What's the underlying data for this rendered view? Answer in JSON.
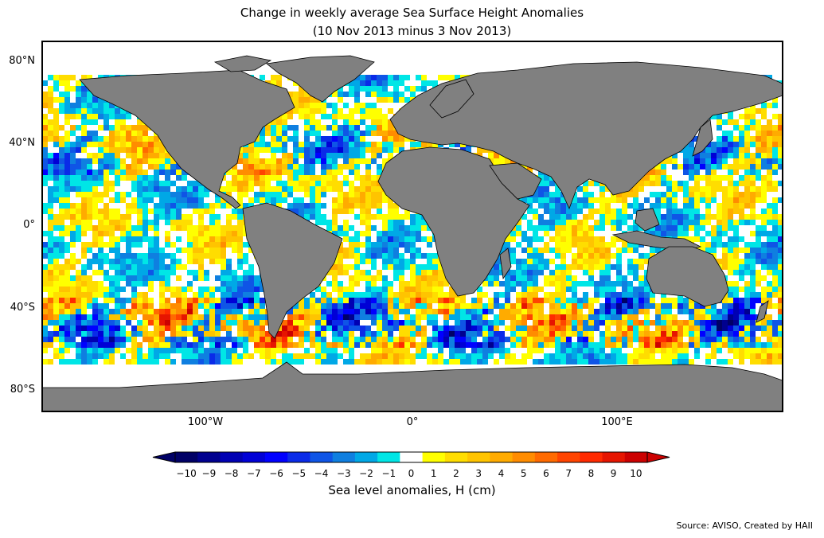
{
  "title_line1": "Change in weekly average Sea Surface Height Anomalies",
  "title_line2": "(10 Nov 2013 minus 3 Nov 2013)",
  "lat_labels": [
    "80°N",
    "40°N",
    "0°",
    "40°S",
    "80°S"
  ],
  "lon_labels": [
    "100°W",
    "0°",
    "100°E"
  ],
  "colorbar": {
    "label": "Sea level anomalies, H (cm)",
    "ticks": [
      "−10",
      "−9",
      "−8",
      "−7",
      "−6",
      "−5",
      "−4",
      "−3",
      "−2",
      "−1",
      "0",
      "1",
      "2",
      "3",
      "4",
      "5",
      "6",
      "7",
      "8",
      "9",
      "10"
    ],
    "colors": [
      "#000066",
      "#00008f",
      "#0000b3",
      "#0000d6",
      "#0000ff",
      "#0a2be8",
      "#0f55e6",
      "#0f7fe0",
      "#00a8e6",
      "#00e6e6",
      "#ffffff",
      "#ffff00",
      "#ffdd00",
      "#ffc400",
      "#ffab00",
      "#ff8c00",
      "#ff6a00",
      "#ff4400",
      "#ff2a00",
      "#e61500",
      "#cc0000"
    ],
    "extend": "both"
  },
  "source": "Source: AVISO, Created by HAII",
  "colors": {
    "land": "#808080",
    "frame": "#000000"
  }
}
